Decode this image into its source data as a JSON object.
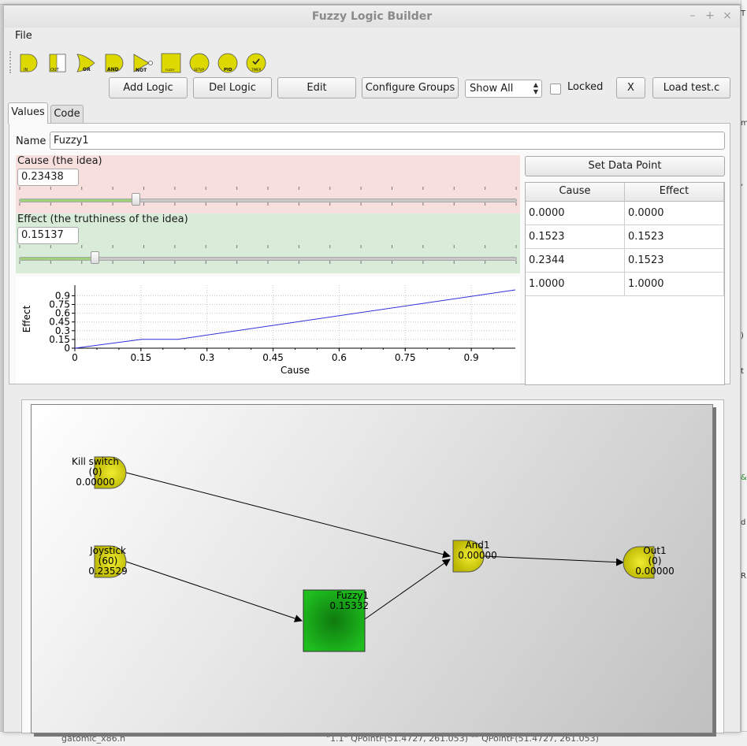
{
  "window": {
    "title": "Fuzzy Logic Builder",
    "controls": [
      "–",
      "+",
      "×"
    ]
  },
  "menubar": {
    "file": "File"
  },
  "toolbar": {
    "tools": [
      {
        "name": "in-gate-tool",
        "label": "IN"
      },
      {
        "name": "out-gate-tool",
        "label": "OUT"
      },
      {
        "name": "or-gate-tool",
        "label": "OR"
      },
      {
        "name": "and-gate-tool",
        "label": "AND"
      },
      {
        "name": "not-gate-tool",
        "label": "NOT"
      },
      {
        "name": "fuzzy-tool",
        "label": "FUZZY"
      },
      {
        "name": "setup-tool",
        "label": "SETUP"
      },
      {
        "name": "pid-tool",
        "label": "PID"
      },
      {
        "name": "timer-tool",
        "label": "TIMER"
      }
    ]
  },
  "actions": {
    "add_logic": "Add Logic",
    "del_logic": "Del Logic",
    "edit": "Edit",
    "configure_groups": "Configure Groups",
    "show_filter": "Show All",
    "locked": "Locked",
    "locked_checked": false,
    "close": "X",
    "load": "Load test.c"
  },
  "tabs": {
    "values": "Values",
    "code": "Code"
  },
  "editor": {
    "name_label": "Name",
    "name_value": "Fuzzy1",
    "cause_label": "Cause (the idea)",
    "cause_value": "0.23438",
    "cause_fraction": 0.23438,
    "effect_label": "Effect (the truthiness of the idea)",
    "effect_value": "0.15137",
    "effect_fraction": 0.15137,
    "set_data_point": "Set Data Point"
  },
  "points_table": {
    "headers": [
      "Cause",
      "Effect"
    ],
    "rows": [
      [
        "0.0000",
        "0.0000"
      ],
      [
        "0.1523",
        "0.1523"
      ],
      [
        "0.2344",
        "0.1523"
      ],
      [
        "1.0000",
        "1.0000"
      ]
    ]
  },
  "chart_data": {
    "type": "line",
    "title": "",
    "xlabel": "Cause",
    "ylabel": "Effect",
    "xlim": [
      0,
      1
    ],
    "ylim": [
      0,
      1
    ],
    "x_ticks": [
      "0",
      "0.15",
      "0.3",
      "0.45",
      "0.6",
      "0.75",
      "0.9"
    ],
    "y_ticks": [
      "0",
      "0.15",
      "0.3",
      "0.45",
      "0.6",
      "0.75",
      "0.9"
    ],
    "grid": true,
    "series": [
      {
        "x": [
          0.0,
          0.1523,
          0.2344,
          1.0
        ],
        "y": [
          0.0,
          0.1523,
          0.1523,
          1.0
        ],
        "color": "#3030d8"
      }
    ]
  },
  "scene": {
    "nodes": {
      "kill_switch": {
        "name": "Kill switch",
        "id_text": "(0)",
        "value": "0.00000",
        "type": "input"
      },
      "joystick": {
        "name": "Joystick",
        "id_text": "(60)",
        "value": "0.23529",
        "type": "input"
      },
      "fuzzy1": {
        "name": "Fuzzy1",
        "value": "0.15332",
        "type": "fuzzy"
      },
      "and1": {
        "name": "And1",
        "value": "0.00000",
        "type": "and"
      },
      "out1": {
        "name": "Out1",
        "id_text": "(0)",
        "value": "0.00000",
        "type": "output"
      }
    },
    "colors": {
      "gate": "#d8d400",
      "fuzzy": "#1fa81f",
      "line": "#000000"
    }
  },
  "background": {
    "right_chars": [
      "T",
      "m",
      ",",
      ")",
      "t",
      "&",
      "d",
      "R"
    ],
    "bottom_text": "gatomic_x86.h",
    "bottom_right_text": "\"1.1\" QPointF(51.4727, 261.053) \"\" QPointF(51.4727, 261.053)"
  }
}
